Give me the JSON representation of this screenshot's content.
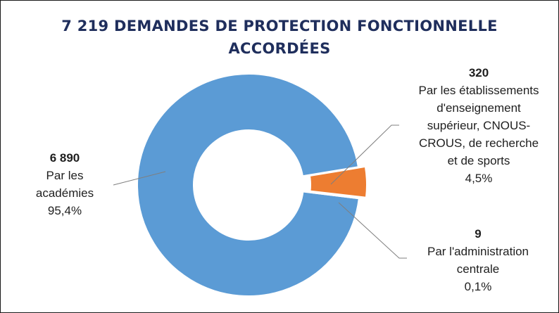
{
  "chart_data": {
    "type": "pie",
    "title": "7 219 DEMANDES DE PROTECTION FONCTIONNELLE ACCORDÉES",
    "total": 7219,
    "slices": [
      {
        "value": 6890,
        "value_label": "6 890",
        "name_lines": [
          "Par les",
          "académies"
        ],
        "percent": "95,4%",
        "color": "#5b9bd5"
      },
      {
        "value": 320,
        "value_label": "320",
        "name_lines": [
          "Par les établissements",
          "d'enseignement",
          "supérieur, CNOUS-",
          "CROUS, de recherche",
          "et de sports"
        ],
        "percent": "4,5%",
        "color": "#ed7d31"
      },
      {
        "value": 9,
        "value_label": "9",
        "name_lines": [
          "Par l'administration",
          "centrale"
        ],
        "percent": "0,1%",
        "color": "#a5a5a5"
      }
    ],
    "donut": true,
    "exploded_small_slices": true,
    "legend": "none"
  },
  "colors": {
    "title": "#1f2e5c",
    "border": "#1a1a1a",
    "leader_line": "#7f7f7f"
  }
}
